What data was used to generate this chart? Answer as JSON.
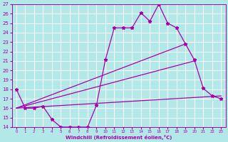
{
  "xlabel": "Windchill (Refroidissement éolien,°C)",
  "bg_color": "#b2e8e8",
  "line_color": "#aa00aa",
  "grid_color": "#ffffff",
  "xlim": [
    -0.5,
    23.5
  ],
  "ylim": [
    14,
    27
  ],
  "xticks": [
    0,
    1,
    2,
    3,
    4,
    5,
    6,
    7,
    8,
    9,
    10,
    11,
    12,
    13,
    14,
    15,
    16,
    17,
    18,
    19,
    20,
    21,
    22,
    23
  ],
  "yticks": [
    14,
    15,
    16,
    17,
    18,
    19,
    20,
    21,
    22,
    23,
    24,
    25,
    26,
    27
  ],
  "line1_x": [
    0,
    1,
    2,
    3,
    4,
    5,
    6,
    7,
    8,
    9,
    10,
    11,
    12,
    13,
    14,
    15,
    16,
    17,
    18,
    19,
    20,
    21,
    22,
    23
  ],
  "line1_y": [
    18.0,
    16.0,
    16.0,
    16.2,
    14.8,
    14.0,
    14.0,
    14.0,
    14.0,
    16.3,
    21.1,
    24.5,
    24.5,
    24.5,
    26.1,
    25.2,
    27.0,
    25.0,
    24.5,
    22.8,
    21.1,
    18.1,
    17.3,
    17.0
  ],
  "line2_x": [
    0,
    19
  ],
  "line2_y": [
    16.0,
    22.8
  ],
  "line3_x": [
    0,
    20
  ],
  "line3_y": [
    16.0,
    21.0
  ],
  "line4_x": [
    0,
    23
  ],
  "line4_y": [
    16.0,
    17.3
  ],
  "marker": "*",
  "markersize": 3.5,
  "linewidth": 0.9
}
